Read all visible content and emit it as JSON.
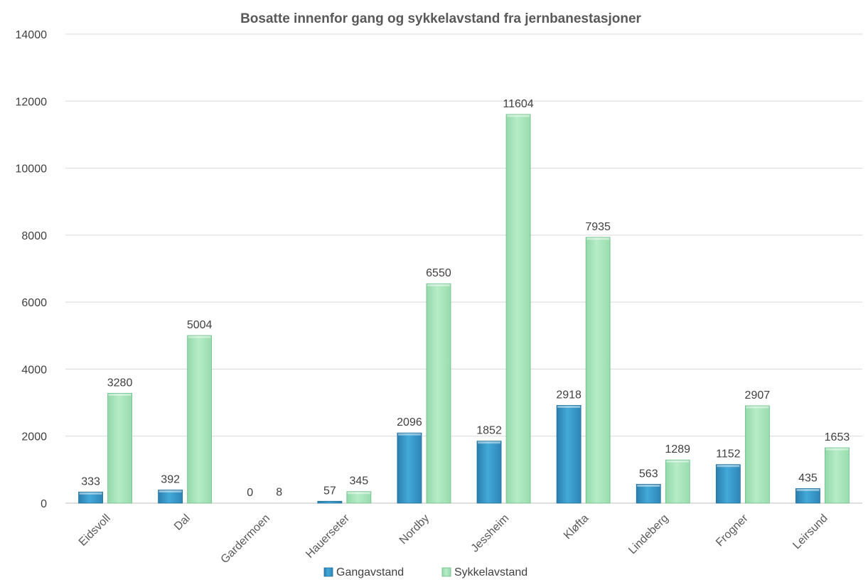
{
  "chart_data": {
    "type": "bar",
    "title": "Bosatte innenfor gang og sykkelavstand fra jernbanestasjoner",
    "xlabel": "",
    "ylabel": "",
    "categories": [
      "Eidsvoll",
      "Dal",
      "Gardermoen",
      "Hauerseter",
      "Nordby",
      "Jessheim",
      "Kløfta",
      "Lindeberg",
      "Frogner",
      "Leirsund"
    ],
    "series": [
      {
        "name": "Gangavstand",
        "color": "#3ea0cf",
        "values": [
          333,
          392,
          0,
          57,
          2096,
          1852,
          2918,
          563,
          1152,
          435
        ]
      },
      {
        "name": "Sykkelavstand",
        "color": "#a9e5bd",
        "values": [
          3280,
          5004,
          8,
          345,
          6550,
          11604,
          7935,
          1289,
          2907,
          1653
        ]
      }
    ],
    "ylim": [
      0,
      14000
    ],
    "yticks": [
      0,
      2000,
      4000,
      6000,
      8000,
      10000,
      12000,
      14000
    ],
    "grid": true,
    "legend_position": "bottom",
    "data_labels": true
  }
}
